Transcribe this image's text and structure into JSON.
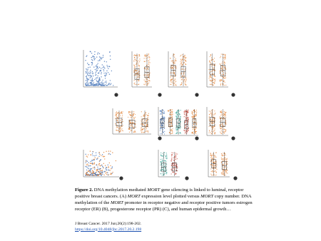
{
  "figure": {
    "caption": {
      "label": "Figure 2.",
      "parts": [
        " DNA methylation mediated ",
        "MORT",
        " gene silencing is linked to luminal, receptor positive breast cancers. (A) ",
        "MORT",
        " expression level plotted versus ",
        "MORT",
        " copy number. DNA methylation of the ",
        "MORT",
        " promoter in receptor negative and receptor positive tumors estrogen receptor (ER) (B), progesterone receptor (PR) (C), and human epidermal growth…"
      ]
    },
    "citation": "J Breast Cancer. 2017 Jun;20(2):198-202.",
    "doi": "https://doi.org/10.4048/jbc.2017.20.2.198"
  }
}
